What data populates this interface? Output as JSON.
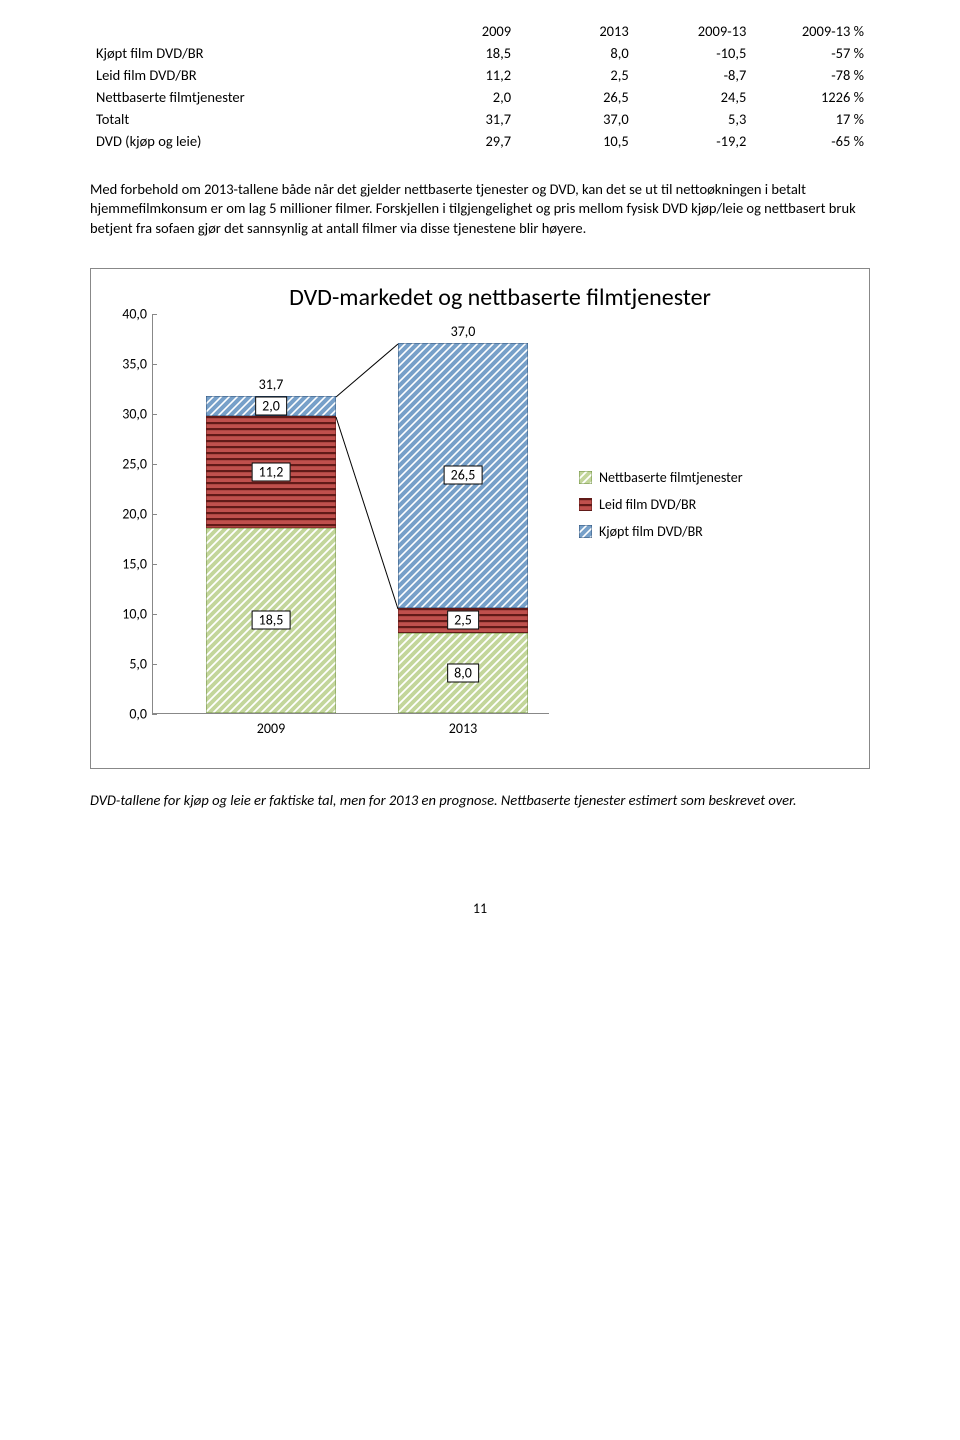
{
  "table": {
    "headers": [
      "",
      "2009",
      "2013",
      "2009-13",
      "2009-13 %"
    ],
    "rows": [
      [
        "Kjøpt film DVD/BR",
        "18,5",
        "8,0",
        "-10,5",
        "-57 %"
      ],
      [
        "Leid film DVD/BR",
        "11,2",
        "2,5",
        "-8,7",
        "-78 %"
      ],
      [
        "Nettbaserte filmtjenester",
        "2,0",
        "26,5",
        "24,5",
        "1226 %"
      ],
      [
        "Totalt",
        "31,7",
        "37,0",
        "5,3",
        "17 %"
      ],
      [
        "DVD (kjøp og leie)",
        "29,7",
        "10,5",
        "-19,2",
        "-65 %"
      ]
    ]
  },
  "para1": "Med forbehold om 2013-tallene både når det gjelder nettbaserte tjenester og DVD, kan det se ut til nettoøkningen i betalt hjemmefilmkonsum er om lag 5 millioner filmer. Forskjellen i tilgjengelighet og pris mellom fysisk DVD kjøp/leie og nettbasert bruk betjent fra sofaen gjør det sannsynlig at antall filmer via disse tjenestene blir høyere.",
  "chart": {
    "title": "DVD-markedet og nettbaserte filmtjenester",
    "ymax": 40,
    "ystep": 5,
    "categories": [
      "2009",
      "2013"
    ],
    "totals": [
      "31,7",
      "37,0"
    ],
    "series": [
      {
        "name": "Nettbaserte filmtjenester",
        "color_fill": "#c3d69b",
        "pattern": "diag-green",
        "values": [
          2.0,
          26.5
        ],
        "labels": [
          "2,0",
          "26,5"
        ]
      },
      {
        "name": "Leid film DVD/BR",
        "color_fill": "#c0504d",
        "pattern": "hstripe-red",
        "values": [
          11.2,
          2.5
        ],
        "labels": [
          "11,2",
          "2,5"
        ]
      },
      {
        "name": "Kjøpt film DVD/BR",
        "color_fill": "#4f81bd",
        "pattern": "diag-blue",
        "values": [
          18.5,
          8.0
        ],
        "labels": [
          "18,5",
          "8,0"
        ]
      }
    ],
    "yticks": [
      "0,0",
      "5,0",
      "10,0",
      "15,0",
      "20,0",
      "25,0",
      "30,0",
      "35,0",
      "40,0"
    ],
    "colors": {
      "green_base": "#c3d69b",
      "green_stripe": "#ffffff",
      "red_base": "#c0504d",
      "red_stripe": "#611a18",
      "blue_base": "#77a0c9",
      "blue_stripe": "#ffffff"
    }
  },
  "caption": "DVD-tallene for kjøp og leie er faktiske tal, men for 2013 en prognose. Nettbaserte tjenester estimert som beskrevet over.",
  "page_number": "11"
}
